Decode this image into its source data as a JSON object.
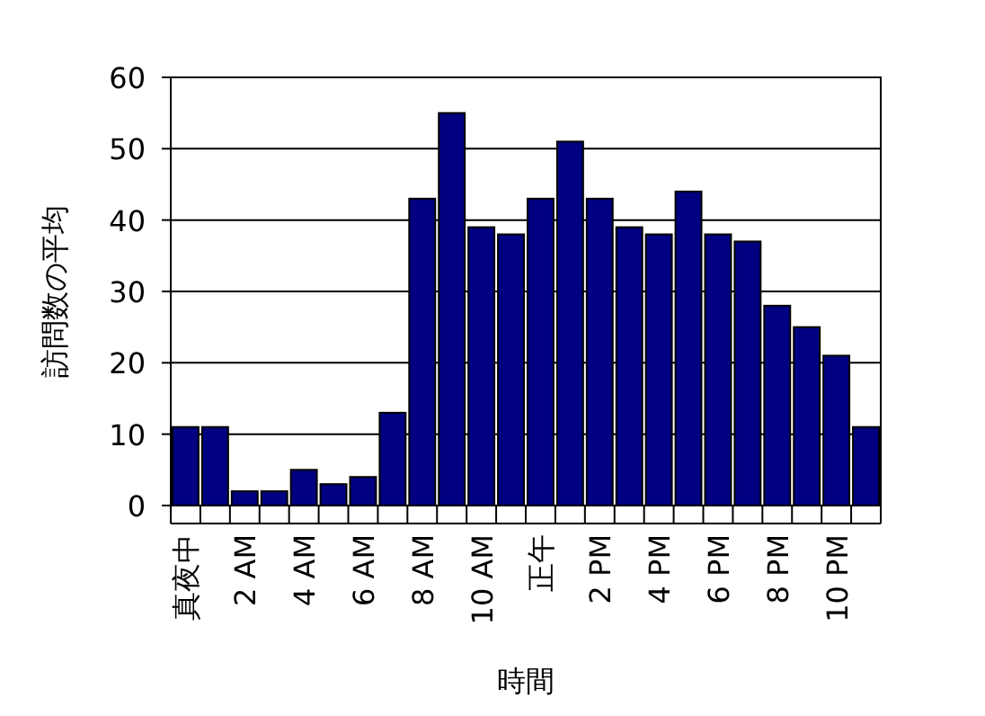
{
  "chart_data": {
    "type": "bar",
    "xlabel": "時間",
    "ylabel": "訪問数の平均",
    "categories": [
      "真夜中",
      null,
      "2 AM",
      null,
      "4 AM",
      null,
      "6 AM",
      null,
      "8 AM",
      null,
      "10 AM",
      null,
      "正午",
      null,
      "2 PM",
      null,
      "4 PM",
      null,
      "6 PM",
      null,
      "8 PM",
      null,
      "10 PM",
      null
    ],
    "values": [
      11,
      11,
      2,
      2,
      5,
      3,
      4,
      13,
      43,
      55,
      39,
      38,
      43,
      51,
      43,
      39,
      38,
      44,
      38,
      37,
      28,
      25,
      21,
      11
    ],
    "color": "#000080",
    "ylim": [
      0,
      60
    ],
    "yticks": [
      0,
      10,
      20,
      30,
      40,
      50,
      60
    ],
    "grid": "y"
  }
}
